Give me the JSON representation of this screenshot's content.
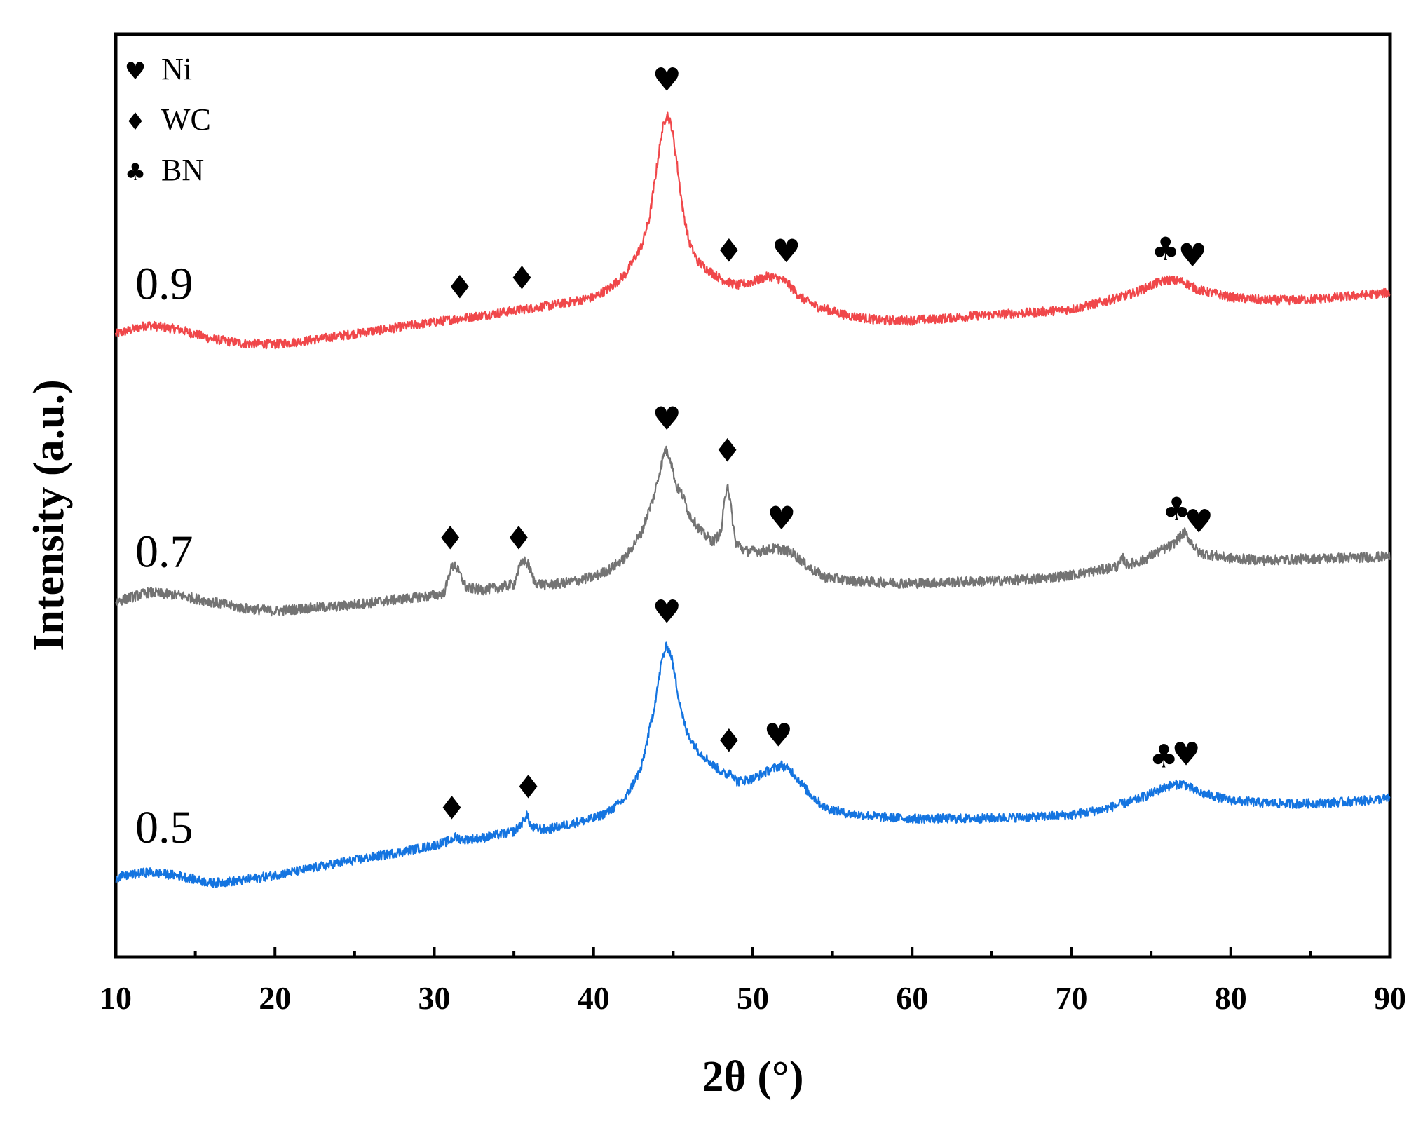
{
  "chart_data": {
    "type": "line",
    "xlabel": "2θ (°)",
    "ylabel": "Intensity (a.u.)",
    "xlim": [
      10,
      90
    ],
    "ylim": [
      0,
      100
    ],
    "x_ticks": [
      10,
      20,
      30,
      40,
      50,
      60,
      70,
      80,
      90
    ],
    "x_tick_labels": [
      "10",
      "20",
      "30",
      "40",
      "50",
      "60",
      "70",
      "80",
      "90"
    ],
    "legend": [
      {
        "symbol": "♥",
        "symbol_name": "heart",
        "label": "Ni"
      },
      {
        "symbol": "♦",
        "symbol_name": "diamond",
        "label": "WC"
      },
      {
        "symbol": "♣",
        "symbol_name": "club",
        "label": "BN"
      }
    ],
    "legend_position": "top-left",
    "series": [
      {
        "name": "0.9",
        "color": "#f0474a",
        "noise": 0.5,
        "points": [
          [
            10,
            67.5
          ],
          [
            12,
            68.5
          ],
          [
            14,
            68
          ],
          [
            16,
            67
          ],
          [
            18,
            66.5
          ],
          [
            20,
            66.4
          ],
          [
            22,
            66.8
          ],
          [
            24,
            67.3
          ],
          [
            26,
            67.8
          ],
          [
            28,
            68.3
          ],
          [
            30,
            68.8
          ],
          [
            32,
            69.3
          ],
          [
            34,
            69.8
          ],
          [
            36,
            70.3
          ],
          [
            38,
            70.8
          ],
          [
            40,
            71.5
          ],
          [
            41,
            72.5
          ],
          [
            42,
            74
          ],
          [
            43,
            77
          ],
          [
            43.5,
            80
          ],
          [
            44,
            86
          ],
          [
            44.3,
            89.5
          ],
          [
            44.6,
            91.5
          ],
          [
            44.9,
            90
          ],
          [
            45.2,
            86.5
          ],
          [
            45.6,
            81
          ],
          [
            46,
            77.5
          ],
          [
            46.5,
            75.5
          ],
          [
            47,
            74.7
          ],
          [
            48,
            73.5
          ],
          [
            49,
            72.8
          ],
          [
            50,
            73.2
          ],
          [
            51,
            73.8
          ],
          [
            52,
            73.3
          ],
          [
            53,
            71.5
          ],
          [
            54,
            70.5
          ],
          [
            55,
            70
          ],
          [
            56,
            69.5
          ],
          [
            58,
            69
          ],
          [
            60,
            69
          ],
          [
            62,
            69.2
          ],
          [
            64,
            69.5
          ],
          [
            66,
            69.7
          ],
          [
            68,
            69.9
          ],
          [
            70,
            70.2
          ],
          [
            72,
            71
          ],
          [
            74,
            72
          ],
          [
            75,
            72.8
          ],
          [
            76,
            73.4
          ],
          [
            77,
            73.2
          ],
          [
            78,
            72.3
          ],
          [
            80,
            71.5
          ],
          [
            82,
            71.2
          ],
          [
            84,
            71.2
          ],
          [
            86,
            71.4
          ],
          [
            88,
            71.7
          ],
          [
            90,
            72
          ]
        ],
        "markers": [
          {
            "symbol": "♦",
            "x": 31.6
          },
          {
            "symbol": "♦",
            "x": 35.5
          },
          {
            "symbol": "♥",
            "x": 44.6
          },
          {
            "symbol": "♦",
            "x": 48.5
          },
          {
            "symbol": "♥",
            "x": 52.1
          },
          {
            "symbol": "♣",
            "x": 75.9
          },
          {
            "symbol": "♥",
            "x": 77.6
          }
        ]
      },
      {
        "name": "0.7",
        "color": "#737373",
        "noise": 0.55,
        "points": [
          [
            10,
            38.5
          ],
          [
            12,
            39.5
          ],
          [
            14,
            39.2
          ],
          [
            16,
            38.5
          ],
          [
            18,
            37.8
          ],
          [
            20,
            37.5
          ],
          [
            22,
            37.8
          ],
          [
            24,
            38
          ],
          [
            26,
            38.4
          ],
          [
            28,
            38.8
          ],
          [
            30,
            39.2
          ],
          [
            30.6,
            39.4
          ],
          [
            30.8,
            40.5
          ],
          [
            31,
            42
          ],
          [
            31.3,
            42.5
          ],
          [
            31.6,
            41.5
          ],
          [
            32,
            40
          ],
          [
            33,
            39.8
          ],
          [
            34,
            40
          ],
          [
            35,
            40.4
          ],
          [
            35.3,
            42
          ],
          [
            35.6,
            43
          ],
          [
            35.9,
            42.5
          ],
          [
            36.3,
            40.6
          ],
          [
            37,
            40.3
          ],
          [
            38,
            40.5
          ],
          [
            39,
            40.8
          ],
          [
            40,
            41.2
          ],
          [
            41,
            42
          ],
          [
            42,
            43.3
          ],
          [
            43,
            46
          ],
          [
            43.8,
            50
          ],
          [
            44.2,
            53
          ],
          [
            44.5,
            55
          ],
          [
            44.8,
            54.2
          ],
          [
            45.2,
            51
          ],
          [
            45.6,
            50
          ],
          [
            46,
            48
          ],
          [
            46.8,
            46
          ],
          [
            47.5,
            45
          ],
          [
            48,
            46
          ],
          [
            48.2,
            49
          ],
          [
            48.4,
            51.5
          ],
          [
            48.6,
            49
          ],
          [
            48.9,
            45
          ],
          [
            49.5,
            44
          ],
          [
            50.5,
            44
          ],
          [
            51.5,
            44.3
          ],
          [
            52.5,
            43.8
          ],
          [
            53.5,
            42.2
          ],
          [
            54.5,
            41.2
          ],
          [
            56,
            40.8
          ],
          [
            58,
            40.6
          ],
          [
            60,
            40.5
          ],
          [
            62,
            40.6
          ],
          [
            64,
            40.7
          ],
          [
            66,
            40.8
          ],
          [
            68,
            41
          ],
          [
            70,
            41.4
          ],
          [
            72,
            42
          ],
          [
            73,
            42.4
          ],
          [
            73.2,
            43.3
          ],
          [
            73.5,
            42.5
          ],
          [
            74.5,
            43
          ],
          [
            75.5,
            44
          ],
          [
            76.3,
            44.6
          ],
          [
            76.8,
            45.5
          ],
          [
            77.1,
            46
          ],
          [
            77.5,
            45
          ],
          [
            78,
            43.8
          ],
          [
            80,
            43.2
          ],
          [
            82,
            43
          ],
          [
            84,
            43.1
          ],
          [
            86,
            43.2
          ],
          [
            88,
            43.3
          ],
          [
            90,
            43.4
          ]
        ],
        "markers": [
          {
            "symbol": "♦",
            "x": 31.0
          },
          {
            "symbol": "♦",
            "x": 35.3
          },
          {
            "symbol": "♥",
            "x": 44.6
          },
          {
            "symbol": "♦",
            "x": 48.4
          },
          {
            "symbol": "♥",
            "x": 51.8
          },
          {
            "symbol": "♣",
            "x": 76.6
          },
          {
            "symbol": "♥",
            "x": 78.0
          }
        ]
      },
      {
        "name": "0.5",
        "color": "#1474e0",
        "noise": 0.5,
        "points": [
          [
            10,
            8.6
          ],
          [
            12,
            9.2
          ],
          [
            14,
            8.8
          ],
          [
            16,
            8
          ],
          [
            18,
            8.3
          ],
          [
            20,
            8.9
          ],
          [
            22,
            9.5
          ],
          [
            24,
            10.2
          ],
          [
            26,
            10.8
          ],
          [
            28,
            11.4
          ],
          [
            30,
            12.1
          ],
          [
            31,
            12.6
          ],
          [
            31.3,
            13
          ],
          [
            31.8,
            12.7
          ],
          [
            33,
            12.9
          ],
          [
            35,
            13.6
          ],
          [
            35.6,
            14.7
          ],
          [
            35.8,
            15.5
          ],
          [
            36.1,
            14
          ],
          [
            37,
            13.8
          ],
          [
            38,
            14.2
          ],
          [
            40,
            15
          ],
          [
            41,
            15.8
          ],
          [
            42,
            17.2
          ],
          [
            43,
            20.5
          ],
          [
            43.8,
            27
          ],
          [
            44.3,
            32.3
          ],
          [
            44.6,
            33.8
          ],
          [
            44.9,
            32.5
          ],
          [
            45.3,
            28.5
          ],
          [
            45.8,
            24.5
          ],
          [
            46.5,
            22.5
          ],
          [
            47.5,
            20.8
          ],
          [
            48.3,
            19.7
          ],
          [
            48.6,
            20.2
          ],
          [
            49,
            19
          ],
          [
            50,
            19.3
          ],
          [
            51,
            20.2
          ],
          [
            51.8,
            20.8
          ],
          [
            52.5,
            20
          ],
          [
            53.5,
            17.8
          ],
          [
            54.5,
            16.2
          ],
          [
            56,
            15.5
          ],
          [
            58,
            15.2
          ],
          [
            60,
            15
          ],
          [
            62,
            15
          ],
          [
            64,
            15
          ],
          [
            66,
            15.1
          ],
          [
            68,
            15.2
          ],
          [
            70,
            15.4
          ],
          [
            72,
            16
          ],
          [
            74,
            17
          ],
          [
            75,
            17.7
          ],
          [
            76,
            18.5
          ],
          [
            77,
            18.8
          ],
          [
            78,
            17.8
          ],
          [
            80,
            17
          ],
          [
            82,
            16.7
          ],
          [
            84,
            16.6
          ],
          [
            86,
            16.7
          ],
          [
            88,
            16.9
          ],
          [
            90,
            17.2
          ]
        ],
        "markers": [
          {
            "symbol": "♦",
            "x": 31.1
          },
          {
            "symbol": "♦",
            "x": 35.9
          },
          {
            "symbol": "♥",
            "x": 44.6
          },
          {
            "symbol": "♦",
            "x": 48.5
          },
          {
            "symbol": "♥",
            "x": 51.6
          },
          {
            "symbol": "♣",
            "x": 75.8
          },
          {
            "symbol": "♥",
            "x": 77.2
          }
        ]
      }
    ]
  }
}
